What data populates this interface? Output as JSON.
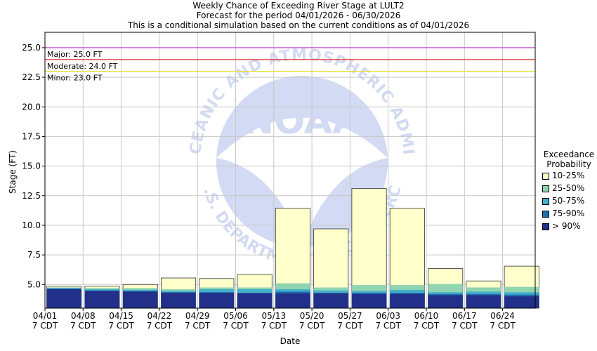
{
  "chart_data": {
    "type": "bar",
    "title": "Weekly Chance of Exceeding River Stage at LULT2",
    "subtitle_1": "Forecast for the period 04/01/2026 - 06/30/2026",
    "subtitle_2": "This is a conditional simulation based on the current conditions as of 04/01/2026",
    "xlabel": "Date",
    "ylabel": "Stage (FT)",
    "ylim": [
      3.0,
      26.3
    ],
    "yticks": [
      "5.0",
      "7.5",
      "10.0",
      "12.5",
      "15.0",
      "17.5",
      "20.0",
      "22.5",
      "25.0"
    ],
    "ytick_values": [
      5.0,
      7.5,
      10.0,
      12.5,
      15.0,
      17.5,
      20.0,
      22.5,
      25.0
    ],
    "categories": [
      "04/01",
      "04/08",
      "04/15",
      "04/22",
      "04/29",
      "05/06",
      "05/13",
      "05/20",
      "05/27",
      "06/03",
      "06/10",
      "06/17",
      "06/24"
    ],
    "x_sublabel": "7 CDT",
    "grid": true,
    "legend_placement": "right",
    "thresholds": [
      {
        "label": "Major: 25.0 FT",
        "value": 25.0,
        "color": "#cc33cc"
      },
      {
        "label": "Moderate: 24.0 FT",
        "value": 24.0,
        "color": "#dd2222"
      },
      {
        "label": "Minor: 23.0 FT",
        "value": 23.0,
        "color": "#e8e030"
      }
    ],
    "legend": {
      "title_1": "Exceedance",
      "title_2": "Probability"
    },
    "series": [
      {
        "name": "> 90%",
        "color": "#22308a",
        "values": [
          4.6,
          4.45,
          4.4,
          4.3,
          4.3,
          4.25,
          4.25,
          4.25,
          4.2,
          4.2,
          4.1,
          4.1,
          4.0
        ]
      },
      {
        "name": "75-90%",
        "color": "#1f6fb0",
        "values": [
          4.65,
          4.5,
          4.45,
          4.35,
          4.35,
          4.3,
          4.4,
          4.3,
          4.3,
          4.3,
          4.2,
          4.2,
          4.15
        ]
      },
      {
        "name": "50-75%",
        "color": "#44b0c8",
        "values": [
          4.7,
          4.6,
          4.55,
          4.45,
          4.6,
          4.6,
          4.6,
          4.5,
          4.45,
          4.55,
          4.35,
          4.4,
          4.35
        ]
      },
      {
        "name": "25-50%",
        "color": "#90d4b0",
        "values": [
          4.75,
          4.7,
          4.7,
          4.6,
          4.75,
          4.75,
          5.1,
          4.75,
          4.95,
          4.95,
          5.05,
          4.75,
          4.8
        ]
      },
      {
        "name": "10-25%",
        "color": "#ffffcc",
        "values": [
          4.85,
          4.85,
          5.0,
          5.55,
          5.5,
          5.85,
          11.45,
          9.7,
          13.1,
          11.45,
          6.35,
          5.3,
          6.55
        ]
      }
    ],
    "watermark": {
      "text": "NOAA",
      "ring_top": "NATIONAL OCEANIC AND ATMOSPHERIC ADMINISTRATION",
      "ring_bottom": "U.S. DEPARTMENT OF COMMERCE"
    }
  }
}
